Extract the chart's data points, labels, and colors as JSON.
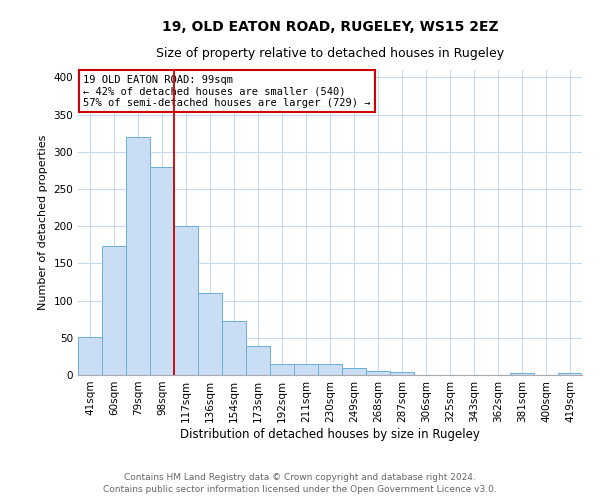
{
  "title": "19, OLD EATON ROAD, RUGELEY, WS15 2EZ",
  "subtitle": "Size of property relative to detached houses in Rugeley",
  "xlabel": "Distribution of detached houses by size in Rugeley",
  "ylabel": "Number of detached properties",
  "footnote1": "Contains HM Land Registry data © Crown copyright and database right 2024.",
  "footnote2": "Contains public sector information licensed under the Open Government Licence v3.0.",
  "bar_labels": [
    "41sqm",
    "60sqm",
    "79sqm",
    "98sqm",
    "117sqm",
    "136sqm",
    "154sqm",
    "173sqm",
    "192sqm",
    "211sqm",
    "230sqm",
    "249sqm",
    "268sqm",
    "287sqm",
    "306sqm",
    "325sqm",
    "343sqm",
    "362sqm",
    "381sqm",
    "400sqm",
    "419sqm"
  ],
  "bar_values": [
    51,
    173,
    320,
    280,
    200,
    110,
    73,
    39,
    15,
    15,
    15,
    9,
    6,
    4,
    0,
    0,
    0,
    0,
    3,
    0,
    3
  ],
  "bar_color": "#c9ddf5",
  "bar_edge_color": "#6baed6",
  "highlight_index": 3,
  "highlight_line_color": "#cc0000",
  "annotation_line1": "19 OLD EATON ROAD: 99sqm",
  "annotation_line2": "← 42% of detached houses are smaller (540)",
  "annotation_line3": "57% of semi-detached houses are larger (729) →",
  "annotation_box_edge_color": "#cc0000",
  "annotation_fontsize": 7.5,
  "ylim": [
    0,
    410
  ],
  "yticks": [
    0,
    50,
    100,
    150,
    200,
    250,
    300,
    350,
    400
  ],
  "title_fontsize": 10,
  "subtitle_fontsize": 9,
  "xlabel_fontsize": 8.5,
  "ylabel_fontsize": 8,
  "tick_fontsize": 7.5,
  "footnote_fontsize": 6.5,
  "background_color": "#ffffff",
  "grid_color": "#c8d8ee"
}
